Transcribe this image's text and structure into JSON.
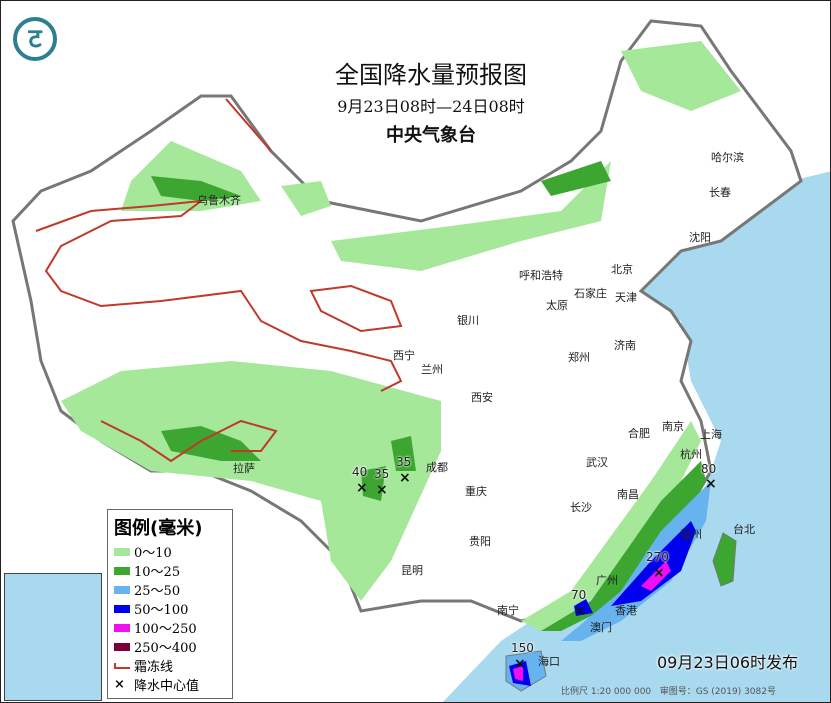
{
  "header": {
    "title": "全国降水量预报图",
    "period": "9月23日08时—24日08时",
    "issuer": "中央气象台",
    "logo_icon": "cma-logo-icon"
  },
  "legend": {
    "title": "图例(毫米)",
    "items": [
      {
        "label": "0～10",
        "color": "#a6e89a"
      },
      {
        "label": "10～25",
        "color": "#3ca630"
      },
      {
        "label": "25～50",
        "color": "#66b3f0"
      },
      {
        "label": "50～100",
        "color": "#0000ee"
      },
      {
        "label": "100～250",
        "color": "#f00ff0"
      },
      {
        "label": "250～400",
        "color": "#7a0036"
      }
    ],
    "frost_line": "霜冻线",
    "center_value": "降水中心值"
  },
  "cities": [
    "乌鲁木齐",
    "哈尔滨",
    "长春",
    "沈阳",
    "北京",
    "天津",
    "呼和浩特",
    "石家庄",
    "太原",
    "济南",
    "银川",
    "西宁",
    "兰州",
    "郑州",
    "西安",
    "合肥",
    "南京",
    "上海",
    "杭州",
    "武汉",
    "南昌",
    "长沙",
    "成都",
    "重庆",
    "贵阳",
    "昆明",
    "拉萨",
    "南宁",
    "广州",
    "香港",
    "澳门",
    "海口",
    "福州",
    "台北"
  ],
  "centers": [
    "80",
    "270",
    "70",
    "150",
    "40",
    "35",
    "35"
  ],
  "footer": {
    "published": "09月23日06时发布",
    "scale": "比例尺 1:20 000 000",
    "map_no": "审图号：GS (2019) 3082号"
  },
  "colors": {
    "sea": "#a9d9ef",
    "land": "#ffffff",
    "border": "#888888",
    "frost": "#c0392b"
  }
}
